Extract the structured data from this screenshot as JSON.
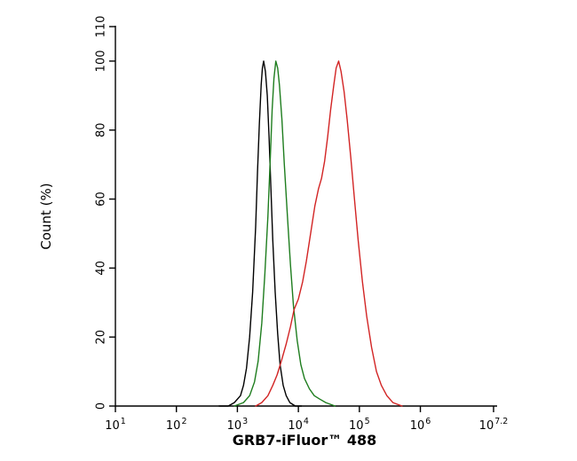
{
  "figure": {
    "background": "#ffffff",
    "axis_color": "#000000"
  },
  "chart_data": {
    "type": "line",
    "chart_kind": "flow-cytometry-histogram",
    "title": "",
    "xlabel": "GRB7-iFluor™ 488",
    "ylabel": "Count (%)",
    "x_scale": "log10",
    "xlim_log10": [
      1,
      7.2
    ],
    "ylim": [
      0,
      110
    ],
    "grid": false,
    "legend": "none",
    "x_ticks": [
      {
        "value": 1,
        "base": "10",
        "exp": "1"
      },
      {
        "value": 2,
        "base": "10",
        "exp": "2"
      },
      {
        "value": 3,
        "base": "10",
        "exp": "3"
      },
      {
        "value": 4,
        "base": "10",
        "exp": "4"
      },
      {
        "value": 5,
        "base": "10",
        "exp": "5"
      },
      {
        "value": 6,
        "base": "10",
        "exp": "6"
      },
      {
        "value": 7.2,
        "base": "10",
        "exp": "7.2"
      }
    ],
    "y_ticks": [
      0,
      20,
      40,
      60,
      80,
      100,
      110
    ],
    "series": [
      {
        "name": "black-curve",
        "color": "#000000",
        "points": [
          [
            2.7,
            0
          ],
          [
            2.85,
            0
          ],
          [
            2.95,
            1
          ],
          [
            3.05,
            3
          ],
          [
            3.1,
            6
          ],
          [
            3.15,
            11
          ],
          [
            3.2,
            20
          ],
          [
            3.25,
            33
          ],
          [
            3.3,
            52
          ],
          [
            3.33,
            68
          ],
          [
            3.36,
            82
          ],
          [
            3.39,
            93
          ],
          [
            3.41,
            98
          ],
          [
            3.43,
            100
          ],
          [
            3.46,
            97
          ],
          [
            3.49,
            90
          ],
          [
            3.52,
            78
          ],
          [
            3.55,
            63
          ],
          [
            3.58,
            48
          ],
          [
            3.62,
            33
          ],
          [
            3.66,
            21
          ],
          [
            3.7,
            12
          ],
          [
            3.75,
            6
          ],
          [
            3.8,
            3
          ],
          [
            3.86,
            1
          ],
          [
            3.95,
            0
          ],
          [
            4.05,
            0
          ]
        ]
      },
      {
        "name": "green-curve",
        "color": "#1e7d1e",
        "points": [
          [
            2.95,
            0
          ],
          [
            3.1,
            1
          ],
          [
            3.2,
            3
          ],
          [
            3.28,
            7
          ],
          [
            3.34,
            13
          ],
          [
            3.4,
            24
          ],
          [
            3.45,
            38
          ],
          [
            3.5,
            55
          ],
          [
            3.54,
            72
          ],
          [
            3.57,
            86
          ],
          [
            3.6,
            95
          ],
          [
            3.63,
            100
          ],
          [
            3.66,
            98
          ],
          [
            3.69,
            93
          ],
          [
            3.73,
            83
          ],
          [
            3.77,
            70
          ],
          [
            3.82,
            55
          ],
          [
            3.87,
            41
          ],
          [
            3.92,
            29
          ],
          [
            3.98,
            19
          ],
          [
            4.04,
            12
          ],
          [
            4.1,
            8
          ],
          [
            4.18,
            5
          ],
          [
            4.26,
            3
          ],
          [
            4.35,
            2
          ],
          [
            4.45,
            1
          ],
          [
            4.6,
            0
          ]
        ]
      },
      {
        "name": "red-curve",
        "color": "#d22424",
        "points": [
          [
            3.3,
            0
          ],
          [
            3.4,
            1
          ],
          [
            3.5,
            3
          ],
          [
            3.58,
            6
          ],
          [
            3.65,
            9
          ],
          [
            3.72,
            13
          ],
          [
            3.8,
            18
          ],
          [
            3.87,
            23
          ],
          [
            3.93,
            28
          ],
          [
            4.0,
            31
          ],
          [
            4.07,
            36
          ],
          [
            4.13,
            42
          ],
          [
            4.2,
            50
          ],
          [
            4.27,
            58
          ],
          [
            4.33,
            63
          ],
          [
            4.38,
            66
          ],
          [
            4.43,
            71
          ],
          [
            4.48,
            78
          ],
          [
            4.53,
            86
          ],
          [
            4.58,
            93
          ],
          [
            4.62,
            98
          ],
          [
            4.66,
            100
          ],
          [
            4.7,
            97
          ],
          [
            4.75,
            91
          ],
          [
            4.8,
            83
          ],
          [
            4.86,
            72
          ],
          [
            4.92,
            60
          ],
          [
            4.98,
            48
          ],
          [
            5.05,
            36
          ],
          [
            5.12,
            26
          ],
          [
            5.2,
            17
          ],
          [
            5.28,
            10
          ],
          [
            5.36,
            6
          ],
          [
            5.45,
            3
          ],
          [
            5.55,
            1
          ],
          [
            5.7,
            0
          ]
        ]
      }
    ]
  }
}
